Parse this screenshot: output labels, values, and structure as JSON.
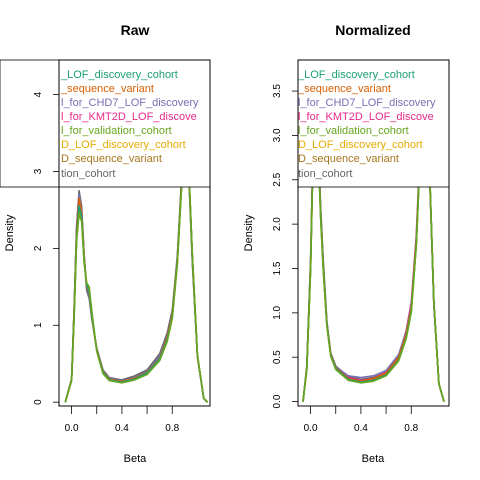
{
  "chart_data": [
    {
      "type": "line",
      "title": "Raw",
      "xlabel": "Beta",
      "ylabel": "Density",
      "xlim": [
        -0.1,
        1.1
      ],
      "ylim": [
        -0.05,
        4.45
      ],
      "x_ticks": [
        0.0,
        0.4,
        0.8
      ],
      "x_tick_labels": [
        "0.0",
        "0.4",
        "0.8"
      ],
      "y_ticks": [
        0,
        1,
        2,
        3,
        4
      ],
      "y_tick_labels": [
        "0",
        "1",
        "2",
        "3",
        "4"
      ],
      "grid": false,
      "legend_position": "top",
      "legend": [
        {
          "text": "_LOF_discovery_cohort",
          "color": "#1b9e77"
        },
        {
          "text": "_sequence_variant",
          "color": "#d95f02"
        },
        {
          "text": "l_for_CHD7_LOF_discovery",
          "color": "#7570b3"
        },
        {
          "text": "l_for_KMT2D_LOF_discove",
          "color": "#e7298a"
        },
        {
          "text": "l_for_validation_cohort",
          "color": "#66a61e"
        },
        {
          "text": "D_LOF_discovery_cohort",
          "color": "#e6ab02"
        },
        {
          "text": "D_sequence_variant",
          "color": "#a6761d"
        },
        {
          "text": "tion_cohort",
          "color": "#666666"
        }
      ],
      "series": [
        {
          "color": "#666666",
          "x": [
            -0.05,
            0.0,
            0.02,
            0.04,
            0.06,
            0.08,
            0.1,
            0.12,
            0.14,
            0.16,
            0.2,
            0.25,
            0.3,
            0.4,
            0.5,
            0.6,
            0.7,
            0.76,
            0.8,
            0.84,
            0.87,
            0.9,
            0.93,
            0.96,
            1.0,
            1.05,
            1.08
          ],
          "y": [
            0.0,
            0.3,
            1.2,
            2.3,
            2.75,
            2.55,
            1.9,
            1.45,
            1.35,
            1.1,
            0.7,
            0.42,
            0.32,
            0.29,
            0.34,
            0.42,
            0.63,
            0.9,
            1.2,
            1.9,
            2.8,
            3.5,
            3.0,
            1.8,
            0.6,
            0.05,
            0.0
          ]
        },
        {
          "color": "#a6761d",
          "x": [
            -0.05,
            0.0,
            0.02,
            0.04,
            0.06,
            0.08,
            0.1,
            0.12,
            0.14,
            0.16,
            0.2,
            0.25,
            0.3,
            0.4,
            0.5,
            0.6,
            0.7,
            0.76,
            0.8,
            0.84,
            0.87,
            0.9,
            0.93,
            0.96,
            1.0,
            1.05,
            1.08
          ],
          "y": [
            0.0,
            0.3,
            1.15,
            2.2,
            2.6,
            2.45,
            1.85,
            1.5,
            1.4,
            1.1,
            0.68,
            0.4,
            0.3,
            0.27,
            0.31,
            0.39,
            0.58,
            0.85,
            1.15,
            1.85,
            2.75,
            3.55,
            3.05,
            1.85,
            0.6,
            0.05,
            0.0
          ]
        },
        {
          "color": "#e6ab02",
          "x": [
            -0.05,
            0.0,
            0.02,
            0.04,
            0.06,
            0.08,
            0.1,
            0.12,
            0.14,
            0.16,
            0.2,
            0.25,
            0.3,
            0.4,
            0.5,
            0.6,
            0.7,
            0.76,
            0.8,
            0.84,
            0.87,
            0.9,
            0.93,
            0.96,
            1.0,
            1.05,
            1.08
          ],
          "y": [
            0.0,
            0.28,
            1.1,
            2.1,
            2.5,
            2.4,
            1.8,
            1.55,
            1.45,
            1.15,
            0.66,
            0.38,
            0.29,
            0.26,
            0.3,
            0.37,
            0.55,
            0.8,
            1.1,
            1.8,
            2.7,
            3.6,
            3.1,
            1.9,
            0.62,
            0.05,
            0.0
          ]
        },
        {
          "color": "#e7298a",
          "x": [
            -0.05,
            0.0,
            0.02,
            0.04,
            0.06,
            0.08,
            0.1,
            0.12,
            0.14,
            0.16,
            0.2,
            0.25,
            0.3,
            0.4,
            0.5,
            0.6,
            0.7,
            0.76,
            0.8,
            0.84,
            0.87,
            0.9,
            0.93,
            0.96,
            1.0,
            1.05,
            1.08
          ],
          "y": [
            0.0,
            0.29,
            1.15,
            2.2,
            2.6,
            2.45,
            1.85,
            1.5,
            1.4,
            1.12,
            0.67,
            0.39,
            0.3,
            0.27,
            0.31,
            0.38,
            0.56,
            0.82,
            1.12,
            1.82,
            2.72,
            3.58,
            3.08,
            1.88,
            0.6,
            0.05,
            0.0
          ]
        },
        {
          "color": "#7570b3",
          "x": [
            -0.05,
            0.0,
            0.02,
            0.04,
            0.06,
            0.08,
            0.1,
            0.12,
            0.14,
            0.16,
            0.2,
            0.25,
            0.3,
            0.4,
            0.5,
            0.6,
            0.7,
            0.76,
            0.8,
            0.84,
            0.87,
            0.9,
            0.93,
            0.96,
            1.0,
            1.05,
            1.08
          ],
          "y": [
            0.0,
            0.3,
            1.2,
            2.25,
            2.7,
            2.5,
            1.9,
            1.48,
            1.38,
            1.1,
            0.69,
            0.41,
            0.31,
            0.28,
            0.32,
            0.4,
            0.6,
            0.86,
            1.16,
            1.86,
            2.76,
            3.52,
            3.02,
            1.82,
            0.6,
            0.05,
            0.0
          ]
        },
        {
          "color": "#d95f02",
          "x": [
            -0.05,
            0.0,
            0.02,
            0.04,
            0.06,
            0.08,
            0.1,
            0.12,
            0.14,
            0.16,
            0.2,
            0.25,
            0.3,
            0.4,
            0.5,
            0.6,
            0.7,
            0.76,
            0.8,
            0.84,
            0.87,
            0.9,
            0.93,
            0.96,
            1.0,
            1.05,
            1.08
          ],
          "y": [
            0.0,
            0.3,
            1.18,
            2.22,
            2.65,
            2.48,
            1.88,
            1.5,
            1.42,
            1.12,
            0.68,
            0.4,
            0.3,
            0.27,
            0.31,
            0.39,
            0.57,
            0.84,
            1.14,
            1.84,
            2.74,
            3.56,
            3.06,
            1.86,
            0.6,
            0.05,
            0.0
          ]
        },
        {
          "color": "#1b9e77",
          "x": [
            -0.05,
            0.0,
            0.02,
            0.04,
            0.06,
            0.08,
            0.1,
            0.12,
            0.14,
            0.16,
            0.2,
            0.25,
            0.3,
            0.4,
            0.5,
            0.6,
            0.7,
            0.76,
            0.8,
            0.84,
            0.87,
            0.9,
            0.93,
            0.96,
            1.0,
            1.05,
            1.08
          ],
          "y": [
            0.0,
            0.29,
            1.12,
            2.15,
            2.55,
            2.42,
            1.82,
            1.52,
            1.44,
            1.14,
            0.67,
            0.39,
            0.29,
            0.26,
            0.3,
            0.38,
            0.56,
            0.81,
            1.11,
            1.81,
            2.71,
            3.58,
            3.08,
            1.88,
            0.61,
            0.05,
            0.0
          ]
        },
        {
          "color": "#66a61e",
          "x": [
            -0.05,
            0.0,
            0.02,
            0.04,
            0.06,
            0.08,
            0.1,
            0.12,
            0.14,
            0.16,
            0.2,
            0.25,
            0.3,
            0.4,
            0.5,
            0.6,
            0.7,
            0.76,
            0.8,
            0.84,
            0.87,
            0.9,
            0.93,
            0.96,
            1.0,
            1.05,
            1.08
          ],
          "y": [
            0.0,
            0.28,
            1.1,
            2.1,
            2.45,
            2.35,
            1.8,
            1.55,
            1.5,
            1.2,
            0.66,
            0.37,
            0.28,
            0.25,
            0.29,
            0.36,
            0.54,
            0.79,
            1.09,
            1.79,
            2.69,
            3.6,
            3.1,
            1.9,
            0.62,
            0.05,
            0.0
          ]
        }
      ]
    },
    {
      "type": "line",
      "title": "Normalized",
      "xlabel": "Beta",
      "ylabel": "Density",
      "xlim": [
        -0.1,
        1.1
      ],
      "ylim": [
        -0.05,
        3.85
      ],
      "x_ticks": [
        0.0,
        0.4,
        0.8
      ],
      "x_tick_labels": [
        "0.0",
        "0.4",
        "0.8"
      ],
      "y_ticks": [
        0.0,
        0.5,
        1.0,
        1.5,
        2.0,
        2.5,
        3.0,
        3.5
      ],
      "y_tick_labels": [
        "0.0",
        "0.5",
        "1.0",
        "1.5",
        "2.0",
        "2.5",
        "3.0",
        "3.5"
      ],
      "grid": false,
      "legend_position": "top",
      "legend": [
        {
          "text": "_LOF_discovery_cohort",
          "color": "#1b9e77"
        },
        {
          "text": "_sequence_variant",
          "color": "#d95f02"
        },
        {
          "text": "l_for_CHD7_LOF_discovery",
          "color": "#7570b3"
        },
        {
          "text": "l_for_KMT2D_LOF_discove",
          "color": "#e7298a"
        },
        {
          "text": "l_for_validation_cohort",
          "color": "#66a61e"
        },
        {
          "text": "D_LOF_discovery_cohort",
          "color": "#e6ab02"
        },
        {
          "text": "D_sequence_variant",
          "color": "#a6761d"
        },
        {
          "text": "tion_cohort",
          "color": "#666666"
        }
      ],
      "series": [
        {
          "color": "#666666",
          "x": [
            -0.06,
            -0.03,
            0.0,
            0.02,
            0.04,
            0.06,
            0.08,
            0.1,
            0.13,
            0.16,
            0.2,
            0.3,
            0.4,
            0.5,
            0.6,
            0.7,
            0.76,
            0.8,
            0.84,
            0.87,
            0.9,
            0.92,
            0.95,
            0.98,
            1.02,
            1.06
          ],
          "y": [
            0.0,
            0.4,
            1.6,
            2.9,
            3.5,
            3.0,
            2.2,
            1.6,
            0.9,
            0.55,
            0.4,
            0.28,
            0.25,
            0.27,
            0.33,
            0.5,
            0.75,
            1.05,
            1.8,
            2.8,
            3.6,
            3.5,
            2.4,
            1.1,
            0.2,
            0.0
          ]
        },
        {
          "color": "#a6761d",
          "x": [
            -0.06,
            -0.03,
            0.0,
            0.02,
            0.04,
            0.06,
            0.08,
            0.1,
            0.13,
            0.16,
            0.2,
            0.3,
            0.4,
            0.5,
            0.6,
            0.7,
            0.76,
            0.8,
            0.84,
            0.87,
            0.9,
            0.92,
            0.95,
            0.98,
            1.02,
            1.06
          ],
          "y": [
            0.0,
            0.38,
            1.55,
            2.85,
            3.45,
            2.95,
            2.15,
            1.55,
            0.88,
            0.53,
            0.38,
            0.26,
            0.23,
            0.25,
            0.31,
            0.48,
            0.73,
            1.03,
            1.78,
            2.78,
            3.62,
            3.52,
            2.42,
            1.1,
            0.2,
            0.0
          ]
        },
        {
          "color": "#e6ab02",
          "x": [
            -0.06,
            -0.03,
            0.0,
            0.02,
            0.04,
            0.06,
            0.08,
            0.1,
            0.13,
            0.16,
            0.2,
            0.3,
            0.4,
            0.5,
            0.6,
            0.7,
            0.76,
            0.8,
            0.84,
            0.87,
            0.9,
            0.92,
            0.95,
            0.98,
            1.02,
            1.06
          ],
          "y": [
            0.0,
            0.37,
            1.5,
            2.8,
            3.4,
            2.9,
            2.1,
            1.5,
            0.86,
            0.52,
            0.37,
            0.25,
            0.22,
            0.24,
            0.3,
            0.47,
            0.72,
            1.02,
            1.77,
            2.77,
            3.63,
            3.53,
            2.43,
            1.1,
            0.2,
            0.0
          ]
        },
        {
          "color": "#e7298a",
          "x": [
            -0.06,
            -0.03,
            0.0,
            0.02,
            0.04,
            0.06,
            0.08,
            0.1,
            0.13,
            0.16,
            0.2,
            0.3,
            0.4,
            0.5,
            0.6,
            0.7,
            0.76,
            0.8,
            0.84,
            0.87,
            0.9,
            0.92,
            0.95,
            0.98,
            1.02,
            1.06
          ],
          "y": [
            0.0,
            0.38,
            1.52,
            2.82,
            3.42,
            2.92,
            2.12,
            1.52,
            0.87,
            0.53,
            0.38,
            0.27,
            0.24,
            0.26,
            0.33,
            0.52,
            0.8,
            1.12,
            1.88,
            2.85,
            3.55,
            3.45,
            2.38,
            1.08,
            0.2,
            0.0
          ]
        },
        {
          "color": "#7570b3",
          "x": [
            -0.06,
            -0.03,
            0.0,
            0.02,
            0.04,
            0.06,
            0.08,
            0.1,
            0.13,
            0.16,
            0.2,
            0.3,
            0.4,
            0.5,
            0.6,
            0.7,
            0.76,
            0.8,
            0.84,
            0.87,
            0.9,
            0.92,
            0.95,
            0.98,
            1.02,
            1.06
          ],
          "y": [
            0.0,
            0.39,
            1.58,
            2.88,
            3.48,
            2.98,
            2.18,
            1.58,
            0.89,
            0.54,
            0.39,
            0.29,
            0.27,
            0.29,
            0.35,
            0.53,
            0.79,
            1.09,
            1.84,
            2.82,
            3.58,
            3.48,
            2.39,
            1.09,
            0.2,
            0.0
          ]
        },
        {
          "color": "#d95f02",
          "x": [
            -0.06,
            -0.03,
            0.0,
            0.02,
            0.04,
            0.06,
            0.08,
            0.1,
            0.13,
            0.16,
            0.2,
            0.3,
            0.4,
            0.5,
            0.6,
            0.7,
            0.76,
            0.8,
            0.84,
            0.87,
            0.9,
            0.92,
            0.95,
            0.98,
            1.02,
            1.06
          ],
          "y": [
            0.0,
            0.38,
            1.54,
            2.84,
            3.44,
            2.94,
            2.14,
            1.54,
            0.87,
            0.53,
            0.38,
            0.26,
            0.23,
            0.26,
            0.32,
            0.5,
            0.76,
            1.06,
            1.81,
            2.8,
            3.6,
            3.5,
            2.41,
            1.1,
            0.2,
            0.0
          ]
        },
        {
          "color": "#1b9e77",
          "x": [
            -0.06,
            -0.03,
            0.0,
            0.02,
            0.04,
            0.06,
            0.08,
            0.1,
            0.13,
            0.16,
            0.2,
            0.3,
            0.4,
            0.5,
            0.6,
            0.7,
            0.76,
            0.8,
            0.84,
            0.87,
            0.9,
            0.92,
            0.95,
            0.98,
            1.02,
            1.06
          ],
          "y": [
            0.0,
            0.37,
            1.51,
            2.81,
            3.41,
            2.91,
            2.11,
            1.51,
            0.86,
            0.52,
            0.37,
            0.25,
            0.22,
            0.24,
            0.3,
            0.47,
            0.72,
            1.02,
            1.77,
            2.77,
            3.62,
            3.52,
            2.42,
            1.1,
            0.2,
            0.0
          ]
        },
        {
          "color": "#66a61e",
          "x": [
            -0.06,
            -0.03,
            0.0,
            0.02,
            0.04,
            0.06,
            0.08,
            0.1,
            0.13,
            0.16,
            0.2,
            0.3,
            0.4,
            0.5,
            0.6,
            0.7,
            0.76,
            0.8,
            0.84,
            0.87,
            0.9,
            0.92,
            0.95,
            0.98,
            1.02,
            1.06
          ],
          "y": [
            0.0,
            0.36,
            1.48,
            2.78,
            3.38,
            2.88,
            2.08,
            1.48,
            0.85,
            0.51,
            0.36,
            0.24,
            0.21,
            0.23,
            0.29,
            0.46,
            0.71,
            1.01,
            1.76,
            2.76,
            3.64,
            3.54,
            2.44,
            1.12,
            0.2,
            0.0
          ]
        }
      ]
    }
  ]
}
